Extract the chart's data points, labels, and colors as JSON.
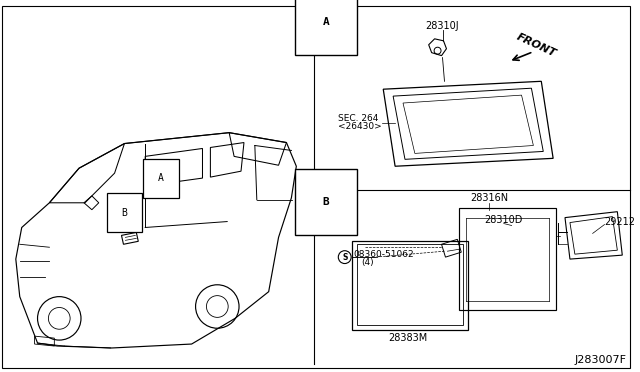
{
  "bg_color": "#ffffff",
  "line_color": "#000000",
  "fig_width": 6.4,
  "fig_height": 3.72,
  "dpi": 100,
  "diagram_code": "J283007F",
  "section_A_label": "A",
  "section_B_label": "B",
  "part_28310J": "28310J",
  "part_SEC264_line1": "SEC. 264",
  "part_SEC264_line2": "<26430>",
  "part_FRONT": "FRONT",
  "part_28316N": "28316N",
  "part_28310D": "28310D",
  "part_29212": "29212",
  "part_08360_line1": "08360-51062",
  "part_08360_line2": "(4)",
  "part_28383M": "28383M",
  "car_label_A": "A",
  "car_label_B": "B",
  "font_size_parts": 7,
  "font_size_section": 8,
  "font_size_code": 8
}
